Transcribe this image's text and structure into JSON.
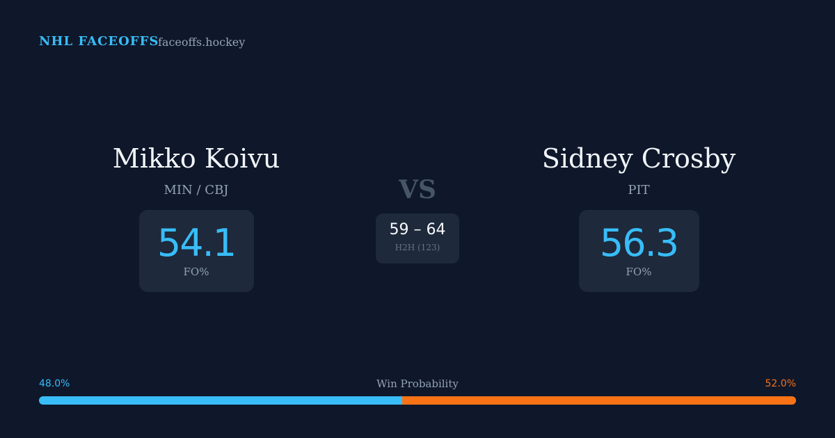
{
  "header": {
    "title": "NHL FACEOFFS",
    "site": "faceoffs.hockey"
  },
  "players": [
    {
      "name": "Mikko Koivu",
      "team": "MIN / CBJ",
      "stat": "54.1",
      "stat_label": "FO%"
    },
    {
      "name": "Sidney Crosby",
      "team": "PIT",
      "stat": "56.3",
      "stat_label": "FO%"
    }
  ],
  "versus": {
    "label": "VS",
    "score": "59 – 64",
    "note": "H2H (123)"
  },
  "win_probability": {
    "label": "Win Probability",
    "left": {
      "value": 48,
      "label": "48.0%",
      "color": "#38bdf8"
    },
    "right": {
      "value": 52,
      "label": "52.0%",
      "color": "#f97316"
    }
  }
}
